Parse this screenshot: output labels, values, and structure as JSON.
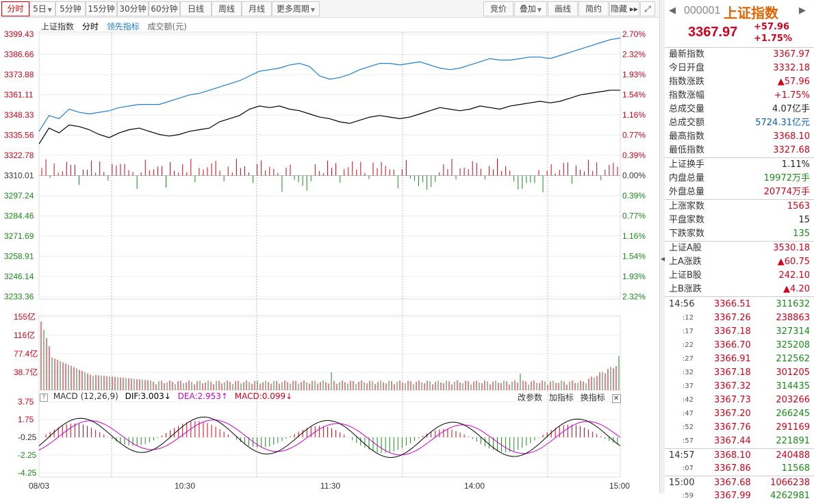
{
  "toolbar": {
    "left_buttons": [
      {
        "label": "分时",
        "active": true
      },
      {
        "label": "5日",
        "caret": true
      },
      {
        "label": "5分钟"
      },
      {
        "label": "15分钟"
      },
      {
        "label": "30分钟"
      },
      {
        "label": "60分钟"
      },
      {
        "label": "日线"
      },
      {
        "label": "周线"
      },
      {
        "label": "月线"
      },
      {
        "label": "更多周期",
        "caret": true
      }
    ],
    "right_buttons": [
      {
        "label": "竞价"
      },
      {
        "label": "叠加",
        "caret": true
      },
      {
        "label": "画线"
      },
      {
        "label": "简约"
      },
      {
        "label": "隐藏 ▸▸"
      },
      {
        "label": "⤢"
      }
    ]
  },
  "legend": {
    "index_name": "上证指数",
    "mode": "分时",
    "leading": "领先指标",
    "turnover": "成交额(元)"
  },
  "price_axis": {
    "left": [
      "3399.43",
      "3386.66",
      "3373.88",
      "3361.11",
      "3348.33",
      "3335.56",
      "3322.78",
      "3310.01",
      "3297.24",
      "3284.46",
      "3271.69",
      "3258.91",
      "3246.14",
      "3233.36"
    ],
    "right": [
      "2.70%",
      "2.32%",
      "1.93%",
      "1.54%",
      "1.16%",
      "0.77%",
      "0.39%",
      "0.00%",
      "0.39%",
      "0.77%",
      "1.16%",
      "1.54%",
      "1.93%",
      "2.32%"
    ]
  },
  "volume_axis": [
    "155亿",
    "116亿",
    "77.4亿",
    "38.7亿"
  ],
  "macd": {
    "name": "MACD (12,26,9)",
    "dif": "DIF:3.003↓",
    "dea": "DEA:2.953↑",
    "macd": "MACD:0.099↓",
    "tools": [
      "改参数",
      "加指标",
      "换指标"
    ],
    "close": "✕",
    "axis": [
      "3.75",
      "1.75",
      "-0.25",
      "-2.25",
      "-4.25"
    ]
  },
  "time_axis": [
    "08/03",
    "10:30",
    "11:30",
    "14:00",
    "15:00"
  ],
  "colors": {
    "up": "#d0021b",
    "down": "#1a8a1a",
    "leading": "#1f7fd0",
    "price": "#000000",
    "dea": "#d100d1"
  },
  "chart_data": {
    "type": "line",
    "x_range": [
      "09:30",
      "15:00"
    ],
    "ylim": [
      3233.36,
      3399.43
    ],
    "prev_close": 3310.01,
    "series": [
      {
        "values": [
          3330,
          3340,
          3337,
          3342,
          3341,
          3339,
          3336,
          3334,
          3337,
          3339,
          3340,
          3338,
          3336,
          3335,
          3336,
          3338,
          3339,
          3340,
          3344,
          3346,
          3348,
          3352,
          3354,
          3353,
          3354,
          3352,
          3351,
          3349,
          3347,
          3346,
          3344,
          3343,
          3345,
          3347,
          3348,
          3347,
          3346,
          3347,
          3349,
          3351,
          3353,
          3352,
          3351,
          3352,
          3354,
          3353,
          3352,
          3354,
          3355,
          3356,
          3357,
          3356,
          3357,
          3359,
          3361,
          3362,
          3363,
          3364,
          3364
        ]
      },
      {
        "values": [
          3338,
          3348,
          3346,
          3352,
          3350,
          3349,
          3350,
          3351,
          3353,
          3354,
          3355,
          3355,
          3355,
          3357,
          3359,
          3361,
          3362,
          3364,
          3366,
          3368,
          3370,
          3373,
          3376,
          3377,
          3378,
          3380,
          3381,
          3379,
          3373,
          3371,
          3372,
          3374,
          3377,
          3379,
          3381,
          3381,
          3380,
          3381,
          3382,
          3380,
          3378,
          3377,
          3378,
          3380,
          3382,
          3384,
          3383,
          3383,
          3384,
          3385,
          3385,
          3384,
          3386,
          3388,
          3390,
          3392,
          3394,
          3396,
          3397
        ]
      }
    ]
  },
  "quote": {
    "code": "000001",
    "name": "上证指数",
    "price": "3367.97",
    "change": "+57.96",
    "pct": "+1.75%"
  },
  "stats1": [
    {
      "label": "最新指数",
      "value": "3367.97",
      "color": "red"
    },
    {
      "label": "今日开盘",
      "value": "3332.18",
      "color": "red"
    },
    {
      "label": "指数涨跌",
      "value": "▲57.96",
      "color": "red"
    },
    {
      "label": "指数涨幅",
      "value": "+1.75%",
      "color": "red"
    },
    {
      "label": "总成交量",
      "value": "4.07亿手",
      "color": "plain"
    },
    {
      "label": "总成交额",
      "value": "5724.31亿元",
      "color": "blue"
    },
    {
      "label": "最高指数",
      "value": "3368.10",
      "color": "red"
    },
    {
      "label": "最低指数",
      "value": "3327.68",
      "color": "red"
    }
  ],
  "stats2": [
    {
      "label": "上证换手",
      "value": "1.11%",
      "color": "plain"
    },
    {
      "label": "内盘总量",
      "value": "19972万手",
      "color": "green"
    },
    {
      "label": "外盘总量",
      "value": "20774万手",
      "color": "red"
    }
  ],
  "stats3": [
    {
      "label": "上涨家数",
      "value": "1563",
      "color": "red"
    },
    {
      "label": "平盘家数",
      "value": "15",
      "color": "plain"
    },
    {
      "label": "下跌家数",
      "value": "135",
      "color": "green"
    }
  ],
  "stats4": [
    {
      "label": "上证A股",
      "value": "3530.18",
      "color": "red"
    },
    {
      "label": "上A涨跌",
      "value": "▲60.75",
      "color": "red"
    },
    {
      "label": "上证B股",
      "value": "242.10",
      "color": "red"
    },
    {
      "label": "上B涨跌",
      "value": "▲4.20",
      "color": "red"
    }
  ],
  "ticks": [
    {
      "time": "14:56",
      "price": "3366.51",
      "vol": "311632",
      "big": true
    },
    {
      "time": ":12",
      "price": "3367.26",
      "vol": "238863"
    },
    {
      "time": ":17",
      "price": "3367.18",
      "vol": "327314"
    },
    {
      "time": ":22",
      "price": "3366.70",
      "vol": "325208"
    },
    {
      "time": ":27",
      "price": "3366.91",
      "vol": "212562"
    },
    {
      "time": ":32",
      "price": "3367.18",
      "vol": "301205"
    },
    {
      "time": ":37",
      "price": "3367.32",
      "vol": "314435"
    },
    {
      "time": ":42",
      "price": "3367.73",
      "vol": "203266"
    },
    {
      "time": ":47",
      "price": "3367.20",
      "vol": "266245"
    },
    {
      "time": ":52",
      "price": "3367.76",
      "vol": "291169"
    },
    {
      "time": ":57",
      "price": "3367.44",
      "vol": "221891"
    },
    {
      "time": "14:57",
      "price": "3368.10",
      "vol": "240488",
      "big": true,
      "sep": true
    },
    {
      "time": ":07",
      "price": "3367.86",
      "vol": "11568"
    },
    {
      "time": "15:00",
      "price": "3367.68",
      "vol": "1066238",
      "big": true,
      "sep": true
    },
    {
      "time": ":59",
      "price": "3367.99",
      "vol": "4262981"
    }
  ]
}
